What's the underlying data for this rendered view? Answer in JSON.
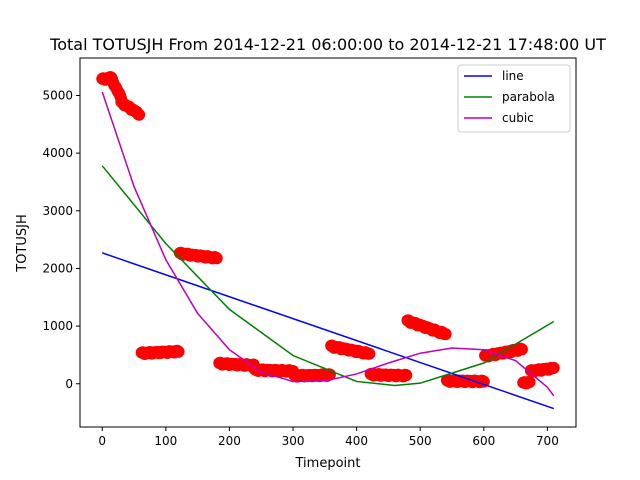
{
  "chart_data": {
    "type": "scatter",
    "title": "Total TOTUSJH From 2014-12-21 06:00:00 to 2014-12-21 17:48:00 UT",
    "xlabel": "Timepoint",
    "ylabel": "TOTUSJH",
    "xlim": [
      -35,
      745
    ],
    "ylim": [
      -750,
      5650
    ],
    "xticks": [
      0,
      100,
      200,
      300,
      400,
      500,
      600,
      700
    ],
    "yticks": [
      0,
      1000,
      2000,
      3000,
      4000,
      5000
    ],
    "grid": false,
    "legend_position": "upper right",
    "scatter": {
      "color": "#ff0000",
      "segments": [
        {
          "x0": 0,
          "x1": 14,
          "y0": 5280,
          "y1": 5310
        },
        {
          "x0": 14,
          "x1": 30,
          "y0": 5300,
          "y1": 4950
        },
        {
          "x0": 30,
          "x1": 58,
          "y0": 4880,
          "y1": 4680
        },
        {
          "x0": 62,
          "x1": 120,
          "y0": 530,
          "y1": 560
        },
        {
          "x0": 122,
          "x1": 180,
          "y0": 2260,
          "y1": 2180
        },
        {
          "x0": 184,
          "x1": 238,
          "y0": 350,
          "y1": 320
        },
        {
          "x0": 240,
          "x1": 300,
          "y0": 240,
          "y1": 220
        },
        {
          "x0": 302,
          "x1": 358,
          "y0": 140,
          "y1": 150
        },
        {
          "x0": 360,
          "x1": 420,
          "y0": 650,
          "y1": 520
        },
        {
          "x0": 422,
          "x1": 478,
          "y0": 160,
          "y1": 140
        },
        {
          "x0": 480,
          "x1": 540,
          "y0": 1090,
          "y1": 860
        },
        {
          "x0": 542,
          "x1": 600,
          "y0": 50,
          "y1": 40
        },
        {
          "x0": 602,
          "x1": 660,
          "y0": 480,
          "y1": 600
        },
        {
          "x0": 662,
          "x1": 672,
          "y0": 10,
          "y1": 30
        },
        {
          "x0": 674,
          "x1": 710,
          "y0": 220,
          "y1": 270
        }
      ]
    },
    "series": [
      {
        "name": "line",
        "color": "#0000ff",
        "x": [
          0,
          710
        ],
        "y": [
          2270,
          -430
        ]
      },
      {
        "name": "parabola",
        "color": "#008000",
        "x": [
          0,
          100,
          200,
          300,
          400,
          460,
          500,
          600,
          710
        ],
        "y": [
          3780,
          2430,
          1290,
          490,
          40,
          -30,
          10,
          360,
          1080
        ]
      },
      {
        "name": "cubic",
        "color": "#bf00bf",
        "x": [
          0,
          50,
          100,
          150,
          200,
          250,
          300,
          350,
          400,
          450,
          500,
          550,
          600,
          650,
          700,
          710
        ],
        "y": [
          5060,
          3420,
          2150,
          1220,
          590,
          200,
          40,
          50,
          170,
          360,
          530,
          620,
          590,
          400,
          -60,
          -210
        ]
      }
    ]
  }
}
